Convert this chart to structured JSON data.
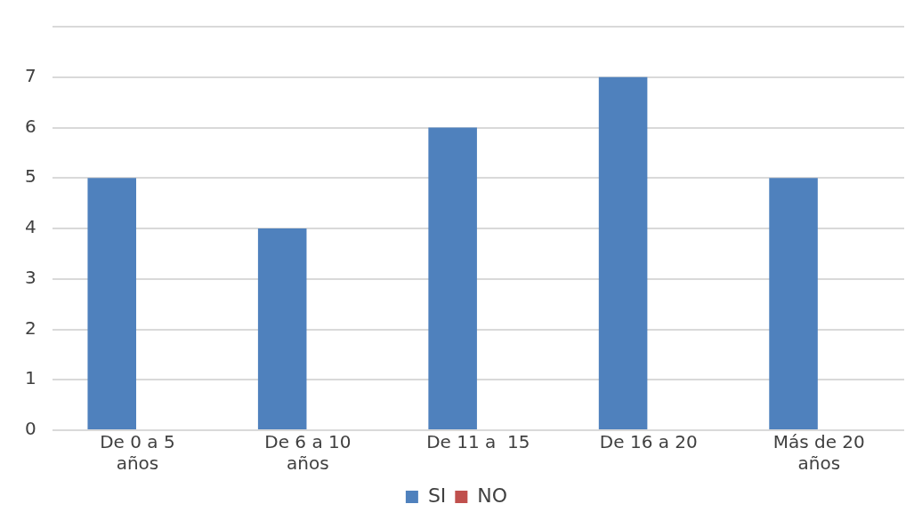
{
  "chart_data": {
    "type": "bar",
    "categories": [
      "De 0 a 5 años",
      "De 6 a 10 años",
      "De 11 a  15",
      "De 16 a 20",
      "Más de 20 años"
    ],
    "series": [
      {
        "name": "SI",
        "color": "#4f81bd",
        "values": [
          5,
          4,
          6,
          7,
          5
        ]
      },
      {
        "name": "NO",
        "color": "#c0504d",
        "values": [
          0,
          0,
          0,
          0,
          0
        ]
      }
    ],
    "ylim": [
      0,
      8
    ],
    "yticks": [
      0,
      1,
      2,
      3,
      4,
      5,
      6,
      7,
      {
        "value": 8,
        "label": null
      }
    ],
    "grid": "y",
    "legend": "bottom"
  }
}
